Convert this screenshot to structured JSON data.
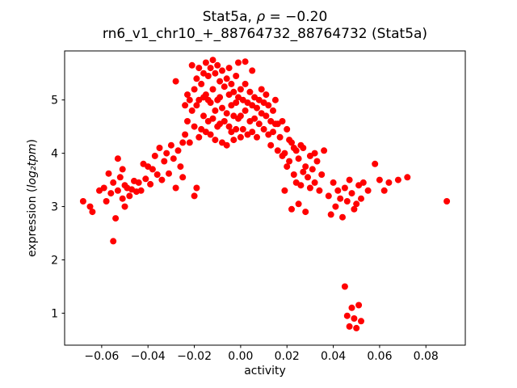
{
  "chart_data": {
    "type": "scatter",
    "title": "Stat5a, ρ = −0.20",
    "title_parts": {
      "prefix": "Stat5a, ",
      "rho": "ρ",
      "value": " = −0.20"
    },
    "subtitle": "rn6_v1_chr10_+_88764732_88764732 (Stat5a)",
    "xlabel": "activity",
    "ylabel": "expression (log₂tpm)",
    "ylabel_parts": {
      "prefix": "expression (",
      "math": "log₂tpm",
      "suffix": ")"
    },
    "marker_color": "#ff0000",
    "axis_color": "#000000",
    "grid": false,
    "legend": "none",
    "xlim": [
      -0.076,
      0.097
    ],
    "ylim": [
      0.4,
      5.92
    ],
    "xticks": [
      -0.06,
      -0.04,
      -0.02,
      0.0,
      0.02,
      0.04,
      0.06,
      0.08
    ],
    "xtick_labels": [
      "−0.06",
      "−0.04",
      "−0.02",
      "0.00",
      "0.02",
      "0.04",
      "0.06",
      "0.08"
    ],
    "yticks": [
      1,
      2,
      3,
      4,
      5
    ],
    "ytick_labels": [
      "1",
      "2",
      "3",
      "4",
      "5"
    ],
    "points": [
      [
        -0.068,
        3.1
      ],
      [
        -0.065,
        3.0
      ],
      [
        -0.064,
        2.9
      ],
      [
        -0.061,
        3.3
      ],
      [
        -0.059,
        3.35
      ],
      [
        -0.058,
        3.1
      ],
      [
        -0.057,
        3.62
      ],
      [
        -0.056,
        3.25
      ],
      [
        -0.055,
        2.35
      ],
      [
        -0.055,
        3.45
      ],
      [
        -0.054,
        2.78
      ],
      [
        -0.053,
        3.9
      ],
      [
        -0.053,
        3.3
      ],
      [
        -0.052,
        3.55
      ],
      [
        -0.051,
        3.7
      ],
      [
        -0.051,
        3.15
      ],
      [
        -0.05,
        3.4
      ],
      [
        -0.05,
        3.0
      ],
      [
        -0.049,
        3.35
      ],
      [
        -0.048,
        3.2
      ],
      [
        -0.047,
        3.32
      ],
      [
        -0.046,
        3.48
      ],
      [
        -0.045,
        3.28
      ],
      [
        -0.044,
        3.45
      ],
      [
        -0.043,
        3.3
      ],
      [
        -0.042,
        3.8
      ],
      [
        -0.041,
        3.52
      ],
      [
        -0.04,
        3.75
      ],
      [
        -0.039,
        3.42
      ],
      [
        -0.038,
        3.7
      ],
      [
        -0.037,
        3.95
      ],
      [
        -0.036,
        3.6
      ],
      [
        -0.035,
        4.1
      ],
      [
        -0.034,
        3.5
      ],
      [
        -0.033,
        3.85
      ],
      [
        -0.032,
        4.0
      ],
      [
        -0.031,
        3.62
      ],
      [
        -0.03,
        4.15
      ],
      [
        -0.029,
        3.9
      ],
      [
        -0.028,
        3.35
      ],
      [
        -0.028,
        5.35
      ],
      [
        -0.027,
        4.05
      ],
      [
        -0.026,
        3.75
      ],
      [
        -0.025,
        4.2
      ],
      [
        -0.025,
        3.55
      ],
      [
        -0.024,
        4.35
      ],
      [
        -0.024,
        4.9
      ],
      [
        -0.023,
        4.6
      ],
      [
        -0.023,
        5.1
      ],
      [
        -0.022,
        5.0
      ],
      [
        -0.022,
        4.2
      ],
      [
        -0.021,
        5.65
      ],
      [
        -0.021,
        4.8
      ],
      [
        -0.02,
        5.2
      ],
      [
        -0.02,
        4.5
      ],
      [
        -0.02,
        3.2
      ],
      [
        -0.019,
        5.4
      ],
      [
        -0.019,
        4.9
      ],
      [
        -0.019,
        3.35
      ],
      [
        -0.018,
        5.6
      ],
      [
        -0.018,
        5.0
      ],
      [
        -0.018,
        4.3
      ],
      [
        -0.017,
        5.3
      ],
      [
        -0.017,
        4.45
      ],
      [
        -0.016,
        5.5
      ],
      [
        -0.016,
        4.7
      ],
      [
        -0.016,
        5.05
      ],
      [
        -0.015,
        5.7
      ],
      [
        -0.015,
        5.1
      ],
      [
        -0.015,
        4.4
      ],
      [
        -0.014,
        5.45
      ],
      [
        -0.014,
        4.6
      ],
      [
        -0.014,
        5.0
      ],
      [
        -0.013,
        5.6
      ],
      [
        -0.013,
        4.95
      ],
      [
        -0.013,
        4.35
      ],
      [
        -0.012,
        5.75
      ],
      [
        -0.012,
        5.2
      ],
      [
        -0.012,
        4.65
      ],
      [
        -0.011,
        5.5
      ],
      [
        -0.011,
        4.8
      ],
      [
        -0.011,
        4.25
      ],
      [
        -0.01,
        5.65
      ],
      [
        -0.01,
        5.0
      ],
      [
        -0.01,
        4.5
      ],
      [
        -0.009,
        5.35
      ],
      [
        -0.009,
        4.55
      ],
      [
        -0.009,
        5.05
      ],
      [
        -0.008,
        5.55
      ],
      [
        -0.008,
        4.85
      ],
      [
        -0.008,
        4.2
      ],
      [
        -0.007,
        5.25
      ],
      [
        -0.007,
        4.6
      ],
      [
        -0.006,
        5.4
      ],
      [
        -0.006,
        4.75
      ],
      [
        -0.006,
        4.15
      ],
      [
        -0.005,
        5.1
      ],
      [
        -0.005,
        4.5
      ],
      [
        -0.005,
        5.6
      ],
      [
        -0.004,
        4.9
      ],
      [
        -0.004,
        4.4
      ],
      [
        -0.004,
        5.3
      ],
      [
        -0.003,
        4.7
      ],
      [
        -0.003,
        5.15
      ],
      [
        -0.003,
        4.25
      ],
      [
        -0.002,
        4.95
      ],
      [
        -0.002,
        5.45
      ],
      [
        -0.002,
        4.45
      ],
      [
        -0.001,
        5.05
      ],
      [
        -0.001,
        4.65
      ],
      [
        -0.001,
        5.7
      ],
      [
        0.0,
        5.2
      ],
      [
        0.0,
        4.7
      ],
      [
        0.0,
        4.3
      ],
      [
        0.001,
        5.0
      ],
      [
        0.001,
        4.45
      ],
      [
        0.002,
        5.3
      ],
      [
        0.002,
        4.8
      ],
      [
        0.002,
        5.72
      ],
      [
        0.003,
        4.95
      ],
      [
        0.003,
        4.35
      ],
      [
        0.004,
        5.15
      ],
      [
        0.004,
        4.6
      ],
      [
        0.005,
        4.9
      ],
      [
        0.005,
        4.4
      ],
      [
        0.005,
        5.55
      ],
      [
        0.006,
        5.05
      ],
      [
        0.006,
        4.65
      ],
      [
        0.007,
        4.85
      ],
      [
        0.007,
        4.3
      ],
      [
        0.008,
        5.0
      ],
      [
        0.008,
        4.55
      ],
      [
        0.009,
        4.75
      ],
      [
        0.009,
        5.2
      ],
      [
        0.01,
        4.95
      ],
      [
        0.01,
        4.45
      ],
      [
        0.011,
        4.7
      ],
      [
        0.011,
        5.1
      ],
      [
        0.012,
        4.9
      ],
      [
        0.012,
        4.35
      ],
      [
        0.013,
        4.6
      ],
      [
        0.013,
        4.15
      ],
      [
        0.014,
        4.8
      ],
      [
        0.014,
        4.4
      ],
      [
        0.015,
        4.55
      ],
      [
        0.015,
        5.0
      ],
      [
        0.016,
        4.55
      ],
      [
        0.016,
        4.05
      ],
      [
        0.017,
        4.3
      ],
      [
        0.018,
        4.6
      ],
      [
        0.018,
        3.95
      ],
      [
        0.019,
        4.0
      ],
      [
        0.019,
        3.3
      ],
      [
        0.02,
        4.45
      ],
      [
        0.02,
        3.75
      ],
      [
        0.021,
        3.85
      ],
      [
        0.021,
        4.25
      ],
      [
        0.022,
        4.2
      ],
      [
        0.022,
        2.95
      ],
      [
        0.023,
        3.6
      ],
      [
        0.023,
        4.1
      ],
      [
        0.024,
        4.05
      ],
      [
        0.024,
        3.45
      ],
      [
        0.025,
        3.9
      ],
      [
        0.025,
        3.05
      ],
      [
        0.026,
        3.4
      ],
      [
        0.026,
        4.15
      ],
      [
        0.027,
        4.1
      ],
      [
        0.027,
        3.65
      ],
      [
        0.028,
        3.75
      ],
      [
        0.028,
        2.9
      ],
      [
        0.029,
        3.55
      ],
      [
        0.03,
        3.95
      ],
      [
        0.03,
        3.35
      ],
      [
        0.031,
        3.7
      ],
      [
        0.032,
        3.45
      ],
      [
        0.032,
        4.0
      ],
      [
        0.033,
        3.85
      ],
      [
        0.034,
        3.3
      ],
      [
        0.035,
        3.6
      ],
      [
        0.036,
        4.05
      ],
      [
        0.038,
        3.2
      ],
      [
        0.039,
        2.85
      ],
      [
        0.04,
        3.45
      ],
      [
        0.041,
        3.0
      ],
      [
        0.042,
        3.3
      ],
      [
        0.043,
        3.15
      ],
      [
        0.044,
        2.8
      ],
      [
        0.045,
        3.35
      ],
      [
        0.046,
        3.1
      ],
      [
        0.047,
        3.5
      ],
      [
        0.048,
        3.25
      ],
      [
        0.049,
        2.95
      ],
      [
        0.05,
        3.05
      ],
      [
        0.051,
        3.4
      ],
      [
        0.052,
        3.15
      ],
      [
        0.053,
        3.45
      ],
      [
        0.055,
        3.3
      ],
      [
        0.045,
        1.5
      ],
      [
        0.046,
        0.95
      ],
      [
        0.047,
        0.75
      ],
      [
        0.048,
        1.1
      ],
      [
        0.049,
        0.9
      ],
      [
        0.05,
        0.72
      ],
      [
        0.051,
        1.15
      ],
      [
        0.052,
        0.85
      ],
      [
        0.058,
        3.8
      ],
      [
        0.06,
        3.5
      ],
      [
        0.062,
        3.3
      ],
      [
        0.064,
        3.45
      ],
      [
        0.068,
        3.5
      ],
      [
        0.072,
        3.55
      ],
      [
        0.089,
        3.1
      ]
    ]
  }
}
